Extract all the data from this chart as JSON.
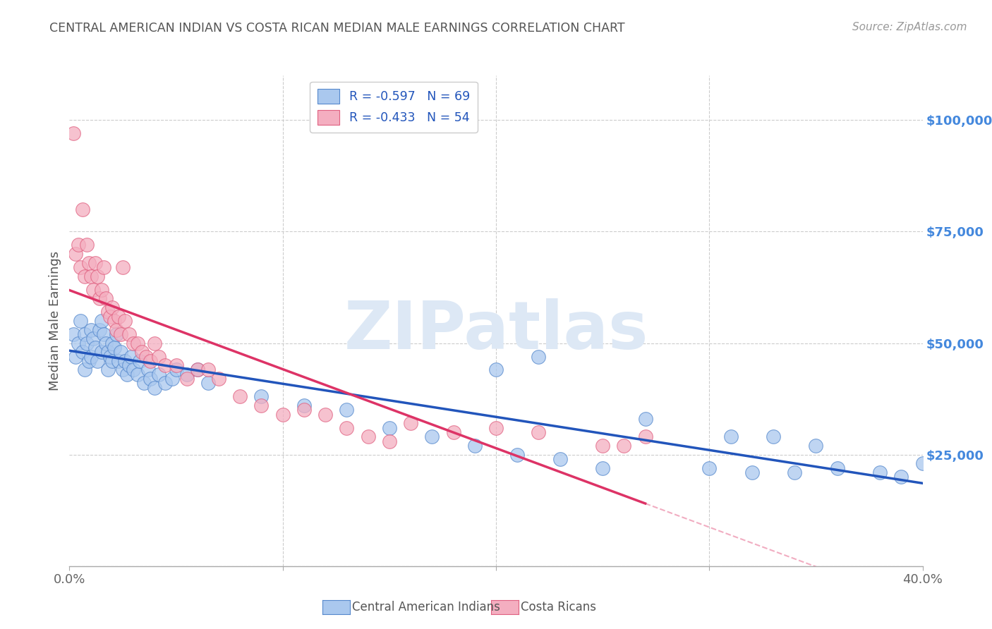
{
  "title": "CENTRAL AMERICAN INDIAN VS COSTA RICAN MEDIAN MALE EARNINGS CORRELATION CHART",
  "source": "Source: ZipAtlas.com",
  "ylabel": "Median Male Earnings",
  "xlim": [
    0.0,
    0.4
  ],
  "ylim": [
    0,
    110000
  ],
  "yticks": [
    0,
    25000,
    50000,
    75000,
    100000
  ],
  "ytick_labels": [
    "",
    "$25,000",
    "$50,000",
    "$75,000",
    "$100,000"
  ],
  "xticks": [
    0.0,
    0.1,
    0.2,
    0.3,
    0.4
  ],
  "xtick_labels": [
    "0.0%",
    "",
    "",
    "",
    "40.0%"
  ],
  "r_blue": -0.597,
  "n_blue": 69,
  "r_pink": -0.433,
  "n_pink": 54,
  "legend_label_blue": "Central American Indians",
  "legend_label_pink": "Costa Ricans",
  "blue_color": "#aac8ee",
  "pink_color": "#f4aec0",
  "blue_edge_color": "#5588cc",
  "pink_edge_color": "#e06080",
  "blue_line_color": "#2255bb",
  "pink_line_color": "#dd3366",
  "background_color": "#ffffff",
  "grid_color": "#cccccc",
  "title_color": "#555555",
  "axis_label_color": "#555555",
  "right_tick_color": "#4488dd",
  "watermark_color": "#dde8f5",
  "watermark_text": "ZIPatlas",
  "blue_scatter_x": [
    0.002,
    0.003,
    0.004,
    0.005,
    0.006,
    0.007,
    0.007,
    0.008,
    0.009,
    0.01,
    0.01,
    0.011,
    0.012,
    0.013,
    0.014,
    0.015,
    0.015,
    0.016,
    0.017,
    0.018,
    0.018,
    0.019,
    0.02,
    0.02,
    0.021,
    0.022,
    0.023,
    0.024,
    0.025,
    0.026,
    0.027,
    0.028,
    0.029,
    0.03,
    0.032,
    0.033,
    0.035,
    0.037,
    0.038,
    0.04,
    0.042,
    0.045,
    0.048,
    0.05,
    0.055,
    0.06,
    0.065,
    0.09,
    0.11,
    0.13,
    0.15,
    0.17,
    0.19,
    0.21,
    0.23,
    0.25,
    0.3,
    0.32,
    0.34,
    0.36,
    0.38,
    0.39,
    0.4,
    0.2,
    0.22,
    0.27,
    0.31,
    0.33,
    0.35
  ],
  "blue_scatter_y": [
    52000,
    47000,
    50000,
    55000,
    48000,
    52000,
    44000,
    50000,
    46000,
    53000,
    47000,
    51000,
    49000,
    46000,
    53000,
    55000,
    48000,
    52000,
    50000,
    48000,
    44000,
    47000,
    50000,
    46000,
    49000,
    52000,
    46000,
    48000,
    44000,
    46000,
    43000,
    45000,
    47000,
    44000,
    43000,
    46000,
    41000,
    44000,
    42000,
    40000,
    43000,
    41000,
    42000,
    44000,
    43000,
    44000,
    41000,
    38000,
    36000,
    35000,
    31000,
    29000,
    27000,
    25000,
    24000,
    22000,
    22000,
    21000,
    21000,
    22000,
    21000,
    20000,
    23000,
    44000,
    47000,
    33000,
    29000,
    29000,
    27000
  ],
  "pink_scatter_x": [
    0.002,
    0.003,
    0.004,
    0.005,
    0.006,
    0.007,
    0.008,
    0.009,
    0.01,
    0.011,
    0.012,
    0.013,
    0.014,
    0.015,
    0.016,
    0.017,
    0.018,
    0.019,
    0.02,
    0.021,
    0.022,
    0.023,
    0.024,
    0.025,
    0.026,
    0.028,
    0.03,
    0.032,
    0.034,
    0.036,
    0.038,
    0.04,
    0.042,
    0.045,
    0.05,
    0.055,
    0.06,
    0.065,
    0.07,
    0.08,
    0.09,
    0.1,
    0.11,
    0.12,
    0.13,
    0.14,
    0.15,
    0.16,
    0.18,
    0.2,
    0.22,
    0.25,
    0.26,
    0.27
  ],
  "pink_scatter_y": [
    97000,
    70000,
    72000,
    67000,
    80000,
    65000,
    72000,
    68000,
    65000,
    62000,
    68000,
    65000,
    60000,
    62000,
    67000,
    60000,
    57000,
    56000,
    58000,
    55000,
    53000,
    56000,
    52000,
    67000,
    55000,
    52000,
    50000,
    50000,
    48000,
    47000,
    46000,
    50000,
    47000,
    45000,
    45000,
    42000,
    44000,
    44000,
    42000,
    38000,
    36000,
    34000,
    35000,
    34000,
    31000,
    29000,
    28000,
    32000,
    30000,
    31000,
    30000,
    27000,
    27000,
    29000
  ]
}
